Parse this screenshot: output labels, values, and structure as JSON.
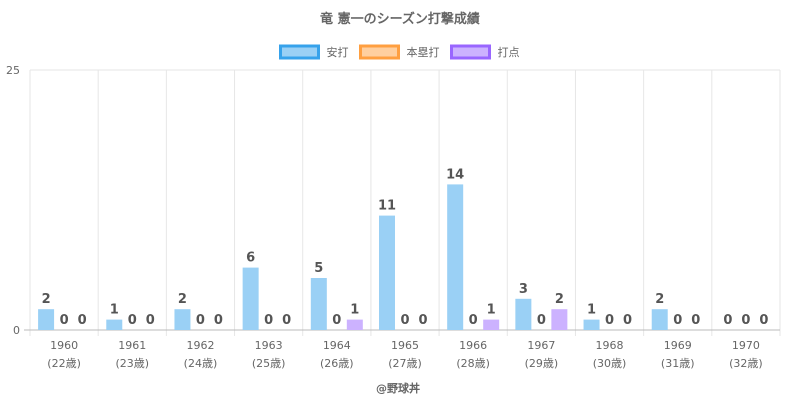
{
  "chart_data": {
    "type": "bar",
    "title": "竜 憲一のシーズン打撃成績",
    "categories": [
      "1960",
      "1961",
      "1962",
      "1963",
      "1964",
      "1965",
      "1966",
      "1967",
      "1968",
      "1969",
      "1970"
    ],
    "category_sublabels": [
      "(22歳)",
      "(23歳)",
      "(24歳)",
      "(25歳)",
      "(26歳)",
      "(27歳)",
      "(28歳)",
      "(29歳)",
      "(30歳)",
      "(31歳)",
      "(32歳)"
    ],
    "series": [
      {
        "name": "安打",
        "values": [
          2,
          1,
          2,
          6,
          5,
          11,
          14,
          3,
          1,
          2,
          0
        ],
        "color": "#9ad0f5",
        "border": "#36a2eb"
      },
      {
        "name": "本塁打",
        "values": [
          0,
          0,
          0,
          0,
          0,
          0,
          0,
          0,
          0,
          0,
          0
        ],
        "color": "#ffcf9f",
        "border": "#ff9f40"
      },
      {
        "name": "打点",
        "values": [
          0,
          0,
          0,
          0,
          1,
          0,
          1,
          2,
          0,
          0,
          0
        ],
        "color": "#ccb2ff",
        "border": "#9966ff"
      }
    ],
    "ylim": [
      0,
      25
    ],
    "yticks": [
      "0",
      "25"
    ],
    "grid": true,
    "legend_position": "top",
    "data_labels": true,
    "credit": "@野球丼"
  }
}
